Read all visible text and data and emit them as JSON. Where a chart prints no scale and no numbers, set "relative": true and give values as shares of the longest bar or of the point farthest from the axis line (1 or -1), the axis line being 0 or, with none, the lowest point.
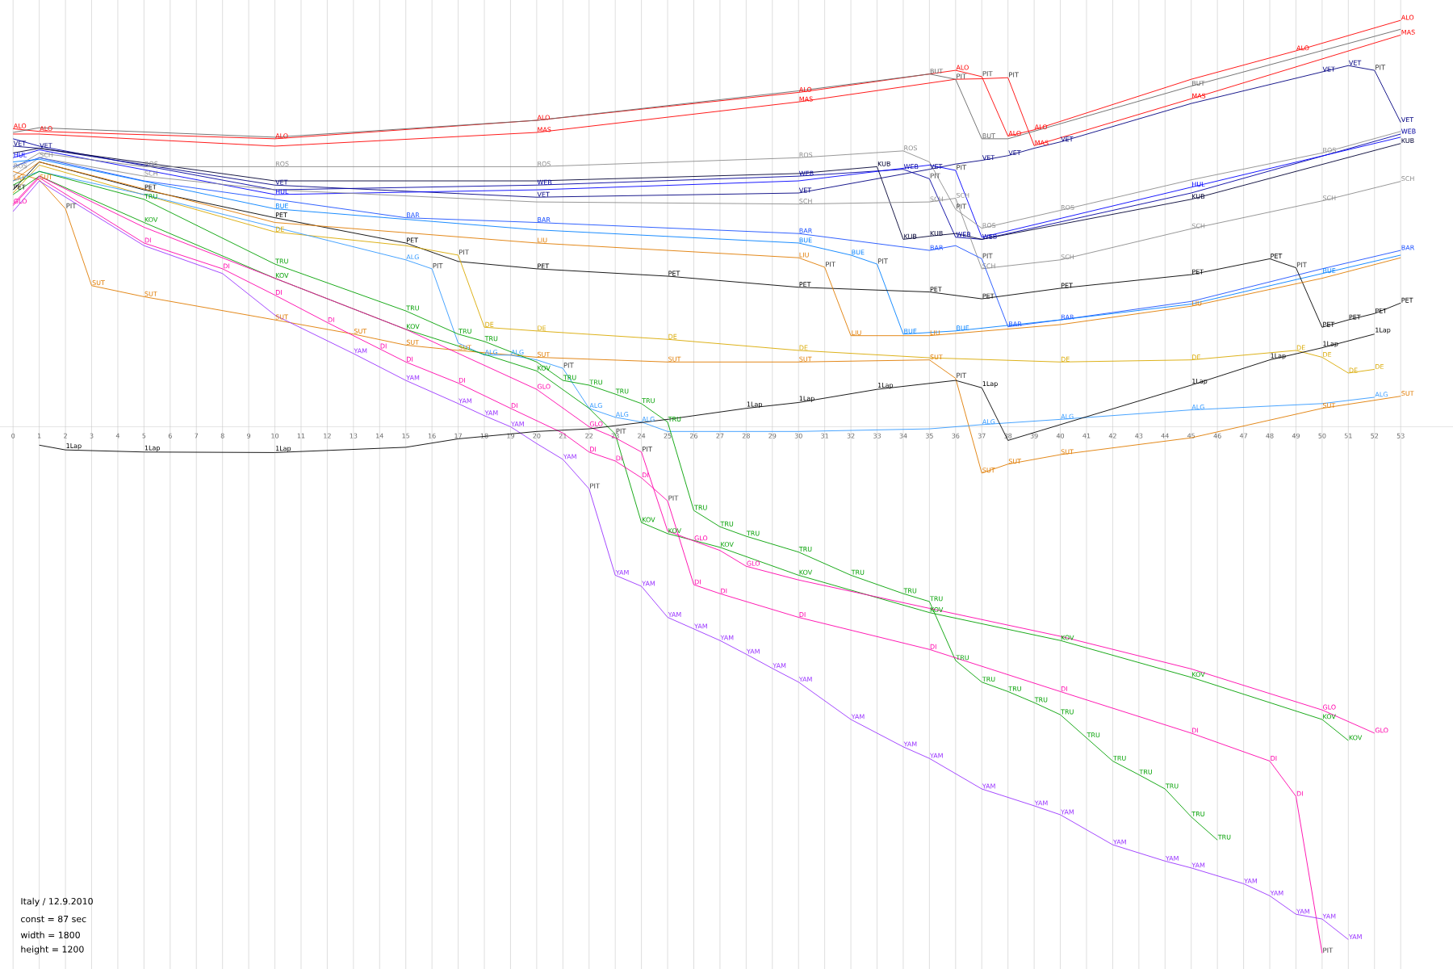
{
  "chart_data": {
    "type": "line",
    "relative": true,
    "grid": "x",
    "marker": "none",
    "line_style": "solid",
    "tick_labels": "x",
    "xlim": [
      -0.5,
      55
    ],
    "xticks": [
      0,
      1,
      2,
      3,
      4,
      5,
      6,
      7,
      8,
      9,
      10,
      11,
      12,
      13,
      14,
      15,
      16,
      17,
      18,
      19,
      20,
      21,
      22,
      23,
      24,
      25,
      26,
      27,
      28,
      29,
      30,
      31,
      32,
      33,
      34,
      35,
      36,
      37,
      38,
      39,
      40,
      41,
      42,
      43,
      44,
      45,
      46,
      47,
      48,
      49,
      50,
      51,
      52,
      53
    ],
    "series": [
      {
        "name": "ALO",
        "color": "#ff0000",
        "x": [
          0,
          1,
          10,
          20,
          30,
          36,
          37,
          38,
          39,
          45,
          49,
          53
        ],
        "values": [
          0.566,
          0.561,
          0.547,
          0.582,
          0.635,
          0.677,
          0.665,
          0.552,
          0.564,
          0.66,
          0.714,
          0.772
        ]
      },
      {
        "name": "MAS",
        "color": "#ff0000",
        "x": [
          0,
          1,
          10,
          20,
          30,
          36,
          37,
          38,
          39,
          45,
          53
        ],
        "values": [
          0.556,
          0.556,
          0.533,
          0.559,
          0.617,
          0.66,
          0.661,
          0.663,
          0.534,
          0.623,
          0.744
        ]
      },
      {
        "name": "BUT",
        "color": "#666666",
        "x": [
          0,
          1,
          10,
          20,
          30,
          35,
          36,
          37,
          38,
          45,
          53
        ],
        "values": [
          0.559,
          0.568,
          0.55,
          0.582,
          0.638,
          0.67,
          0.66,
          0.547,
          0.547,
          0.647,
          0.755
        ]
      },
      {
        "name": "VET",
        "color": "#000080",
        "x": [
          0,
          1,
          10,
          20,
          30,
          35,
          36,
          37,
          38,
          39,
          40,
          45,
          50,
          51,
          52,
          53
        ],
        "values": [
          0.533,
          0.529,
          0.459,
          0.436,
          0.444,
          0.489,
          0.499,
          0.506,
          0.515,
          0.529,
          0.541,
          0.614,
          0.674,
          0.686,
          0.677,
          0.578
        ]
      },
      {
        "name": "WEB",
        "color": "#0000a0",
        "x": [
          0,
          1,
          10,
          20,
          30,
          34,
          35,
          36,
          37,
          45,
          53
        ],
        "values": [
          0.547,
          0.533,
          0.45,
          0.459,
          0.476,
          0.489,
          0.471,
          0.36,
          0.356,
          0.444,
          0.556
        ]
      },
      {
        "name": "HUL",
        "color": "#0000ff",
        "x": [
          0,
          1,
          10,
          20,
          30,
          35,
          36,
          37,
          45,
          53
        ],
        "values": [
          0.511,
          0.526,
          0.441,
          0.45,
          0.467,
          0.497,
          0.487,
          0.36,
          0.455,
          0.55
        ]
      },
      {
        "name": "KUB",
        "color": "#000033",
        "x": [
          0,
          1,
          10,
          20,
          30,
          33,
          34,
          35,
          36,
          37,
          45,
          53
        ],
        "values": [
          0.52,
          0.529,
          0.467,
          0.467,
          0.481,
          0.494,
          0.356,
          0.362,
          0.367,
          0.356,
          0.432,
          0.538
        ]
      },
      {
        "name": "ROS",
        "color": "#8c8c8c",
        "x": [
          0,
          1,
          5,
          10,
          20,
          30,
          34,
          35,
          36,
          37,
          40,
          45,
          50,
          53
        ],
        "values": [
          0.49,
          0.52,
          0.494,
          0.494,
          0.494,
          0.511,
          0.524,
          0.503,
          0.413,
          0.377,
          0.411,
          0.469,
          0.52,
          0.561
        ]
      },
      {
        "name": "SCH",
        "color": "#8c8c8c",
        "x": [
          0,
          1,
          5,
          10,
          20,
          30,
          35,
          36,
          37,
          40,
          45,
          50,
          53
        ],
        "values": [
          0.476,
          0.511,
          0.476,
          0.45,
          0.427,
          0.423,
          0.427,
          0.434,
          0.3,
          0.317,
          0.376,
          0.429,
          0.466
        ]
      },
      {
        "name": "BAR",
        "color": "#1a4fff",
        "x": [
          0,
          1,
          5,
          10,
          15,
          20,
          30,
          35,
          36,
          37,
          38,
          40,
          45,
          50,
          53
        ],
        "values": [
          0.494,
          0.511,
          0.467,
          0.432,
          0.397,
          0.388,
          0.367,
          0.335,
          0.344,
          0.319,
          0.19,
          0.203,
          0.238,
          0.3,
          0.335
        ]
      },
      {
        "name": "BUE",
        "color": "#0080ff",
        "x": [
          0,
          1,
          10,
          20,
          30,
          32,
          33,
          34,
          36,
          40,
          45,
          50,
          53
        ],
        "values": [
          0.503,
          0.508,
          0.414,
          0.374,
          0.349,
          0.326,
          0.309,
          0.176,
          0.182,
          0.203,
          0.233,
          0.291,
          0.326
        ]
      },
      {
        "name": "PET",
        "color": "#000000",
        "x": [
          0,
          1,
          5,
          10,
          15,
          17,
          20,
          25,
          30,
          35,
          37,
          40,
          45,
          48,
          49,
          50,
          51,
          52,
          53
        ],
        "values": [
          0.45,
          0.503,
          0.45,
          0.397,
          0.349,
          0.314,
          0.3,
          0.286,
          0.265,
          0.256,
          0.243,
          0.263,
          0.289,
          0.319,
          0.302,
          0.189,
          0.203,
          0.215,
          0.235
        ]
      },
      {
        "name": "LIU",
        "color": "#e07b00",
        "x": [
          0,
          1,
          10,
          20,
          30,
          31,
          32,
          35,
          40,
          45,
          50,
          53
        ],
        "values": [
          0.467,
          0.503,
          0.388,
          0.349,
          0.321,
          0.303,
          0.173,
          0.173,
          0.194,
          0.229,
          0.282,
          0.321
        ]
      },
      {
        "name": "SUT",
        "color": "#e07b00",
        "x": [
          0,
          1,
          2,
          3,
          5,
          10,
          13,
          15,
          17,
          20,
          25,
          30,
          35,
          36,
          37,
          38,
          40,
          45,
          50,
          53
        ],
        "values": [
          0.485,
          0.469,
          0.414,
          0.268,
          0.247,
          0.203,
          0.176,
          0.155,
          0.145,
          0.132,
          0.123,
          0.123,
          0.127,
          0.092,
          -0.088,
          -0.071,
          -0.053,
          -0.021,
          0.035,
          0.058
        ]
      },
      {
        "name": "DE",
        "color": "#d9a900",
        "x": [
          0,
          1,
          10,
          15,
          17,
          18,
          20,
          25,
          30,
          35,
          40,
          45,
          49,
          50,
          51,
          52
        ],
        "values": [
          0.444,
          0.497,
          0.37,
          0.344,
          0.326,
          0.189,
          0.182,
          0.166,
          0.145,
          0.131,
          0.123,
          0.127,
          0.145,
          0.132,
          0.102,
          0.109
        ]
      },
      {
        "name": "ALG",
        "color": "#3399ff",
        "x": [
          0,
          1,
          5,
          10,
          15,
          16,
          17,
          18,
          19,
          20,
          21,
          22,
          23,
          24,
          25,
          30,
          35,
          37,
          40,
          45,
          50,
          52
        ],
        "values": [
          0.467,
          0.485,
          0.441,
          0.379,
          0.317,
          0.3,
          0.159,
          0.136,
          0.136,
          0.127,
          0.111,
          0.035,
          0.018,
          0.009,
          -0.009,
          -0.009,
          -0.004,
          0.004,
          0.014,
          0.032,
          0.044,
          0.056
        ]
      },
      {
        "name": "TRU",
        "color": "#00a000",
        "x": [
          0,
          1,
          5,
          10,
          15,
          17,
          18,
          20,
          21,
          22,
          23,
          24,
          25,
          26,
          27,
          28,
          30,
          32,
          34,
          35,
          36,
          37,
          38,
          39,
          40,
          41,
          42,
          43,
          44,
          45,
          46
        ],
        "values": [
          0.459,
          0.485,
          0.432,
          0.309,
          0.22,
          0.176,
          0.162,
          0.123,
          0.088,
          0.079,
          0.062,
          0.044,
          0.009,
          -0.159,
          -0.19,
          -0.208,
          -0.238,
          -0.282,
          -0.317,
          -0.332,
          -0.444,
          -0.485,
          -0.503,
          -0.524,
          -0.547,
          -0.591,
          -0.635,
          -0.661,
          -0.688,
          -0.741,
          -0.785
        ]
      },
      {
        "name": "KOV",
        "color": "#00a000",
        "x": [
          0,
          1,
          5,
          10,
          15,
          20,
          22,
          23,
          24,
          25,
          27,
          30,
          35,
          40,
          45,
          50,
          51
        ],
        "values": [
          0.441,
          0.476,
          0.388,
          0.282,
          0.185,
          0.106,
          0.035,
          -0.014,
          -0.182,
          -0.203,
          -0.229,
          -0.282,
          -0.353,
          -0.406,
          -0.476,
          -0.556,
          -0.596
        ]
      },
      {
        "name": "GLO",
        "color": "#ff00aa",
        "x": [
          0,
          1,
          5,
          10,
          15,
          20,
          22,
          23,
          24,
          25,
          26,
          27,
          28,
          30,
          35,
          40,
          45,
          50,
          52
        ],
        "values": [
          0.423,
          0.476,
          0.379,
          0.282,
          0.185,
          0.071,
          0,
          -0.021,
          -0.048,
          -0.198,
          -0.217,
          -0.235,
          -0.265,
          -0.291,
          -0.345,
          -0.398,
          -0.46,
          -0.538,
          -0.582
        ]
      },
      {
        "name": "DI",
        "color": "#ff00aa",
        "x": [
          0,
          1,
          5,
          8,
          10,
          12,
          14,
          15,
          17,
          19,
          21,
          22,
          23,
          24,
          25,
          26,
          27,
          30,
          35,
          40,
          45,
          48,
          49,
          50
        ],
        "values": [
          0.42,
          0.473,
          0.349,
          0.3,
          0.25,
          0.198,
          0.148,
          0.123,
          0.083,
          0.035,
          -0.012,
          -0.048,
          -0.065,
          -0.097,
          -0.141,
          -0.3,
          -0.317,
          -0.362,
          -0.423,
          -0.503,
          -0.582,
          -0.635,
          -0.702,
          -1
        ]
      },
      {
        "name": "YAM",
        "color": "#9933ff",
        "x": [
          0,
          1,
          5,
          8,
          10,
          13,
          15,
          17,
          18,
          19,
          20,
          21,
          22,
          23,
          24,
          25,
          26,
          27,
          28,
          29,
          30,
          32,
          34,
          35,
          37,
          39,
          40,
          42,
          44,
          45,
          47,
          48,
          49,
          50,
          51
        ],
        "values": [
          0.409,
          0.467,
          0.344,
          0.291,
          0.212,
          0.139,
          0.088,
          0.044,
          0.021,
          0,
          -0.032,
          -0.062,
          -0.118,
          -0.282,
          -0.303,
          -0.362,
          -0.384,
          -0.406,
          -0.432,
          -0.459,
          -0.485,
          -0.556,
          -0.608,
          -0.63,
          -0.688,
          -0.72,
          -0.737,
          -0.794,
          -0.825,
          -0.838,
          -0.868,
          -0.891,
          -0.926,
          -0.935,
          -0.974
        ]
      },
      {
        "name": "1Lap",
        "color": "#000000",
        "x": [
          1,
          2,
          5,
          10,
          15,
          17,
          20,
          22,
          25,
          28,
          30,
          33,
          36,
          37,
          38,
          40,
          45,
          48,
          50,
          52
        ],
        "values": [
          -0.035,
          -0.044,
          -0.048,
          -0.049,
          -0.039,
          -0.023,
          -0.009,
          -0.004,
          0.014,
          0.035,
          0.046,
          0.071,
          0.088,
          0.074,
          -0.026,
          0.004,
          0.079,
          0.127,
          0.15,
          0.176
        ]
      }
    ],
    "annotations": [
      {
        "text": "PIT",
        "x": 37,
        "y": 0.665
      },
      {
        "text": "PIT",
        "x": 38,
        "y": 0.663
      },
      {
        "text": "PIT",
        "x": 36,
        "y": 0.66
      },
      {
        "text": "PIT",
        "x": 35,
        "y": 0.471
      },
      {
        "text": "PIT",
        "x": 36,
        "y": 0.487
      },
      {
        "text": "PIT",
        "x": 36,
        "y": 0.413
      },
      {
        "text": "PIT",
        "x": 37,
        "y": 0.319
      },
      {
        "text": "PIT",
        "x": 33,
        "y": 0.309
      },
      {
        "text": "PIT",
        "x": 31,
        "y": 0.303
      },
      {
        "text": "PIT",
        "x": 2,
        "y": 0.414
      },
      {
        "text": "PIT",
        "x": 36,
        "y": 0.092
      },
      {
        "text": "PIT",
        "x": 17,
        "y": 0.326
      },
      {
        "text": "PIT",
        "x": 16,
        "y": 0.3
      },
      {
        "text": "PIT",
        "x": 21,
        "y": 0.111
      },
      {
        "text": "PIT",
        "x": 52,
        "y": 0.677
      },
      {
        "text": "PIT",
        "x": 49,
        "y": 0.302
      },
      {
        "text": "PIT",
        "x": 23,
        "y": -0.014
      },
      {
        "text": "PIT",
        "x": 24,
        "y": -0.048
      },
      {
        "text": "PIT",
        "x": 25,
        "y": -0.141
      },
      {
        "text": "PIT",
        "x": 50,
        "y": -1
      },
      {
        "text": "PIT",
        "x": 22,
        "y": -0.118
      },
      "Italy / 12.9.2010",
      "const = 87 sec",
      "width = 1800",
      "height = 1200"
    ]
  }
}
